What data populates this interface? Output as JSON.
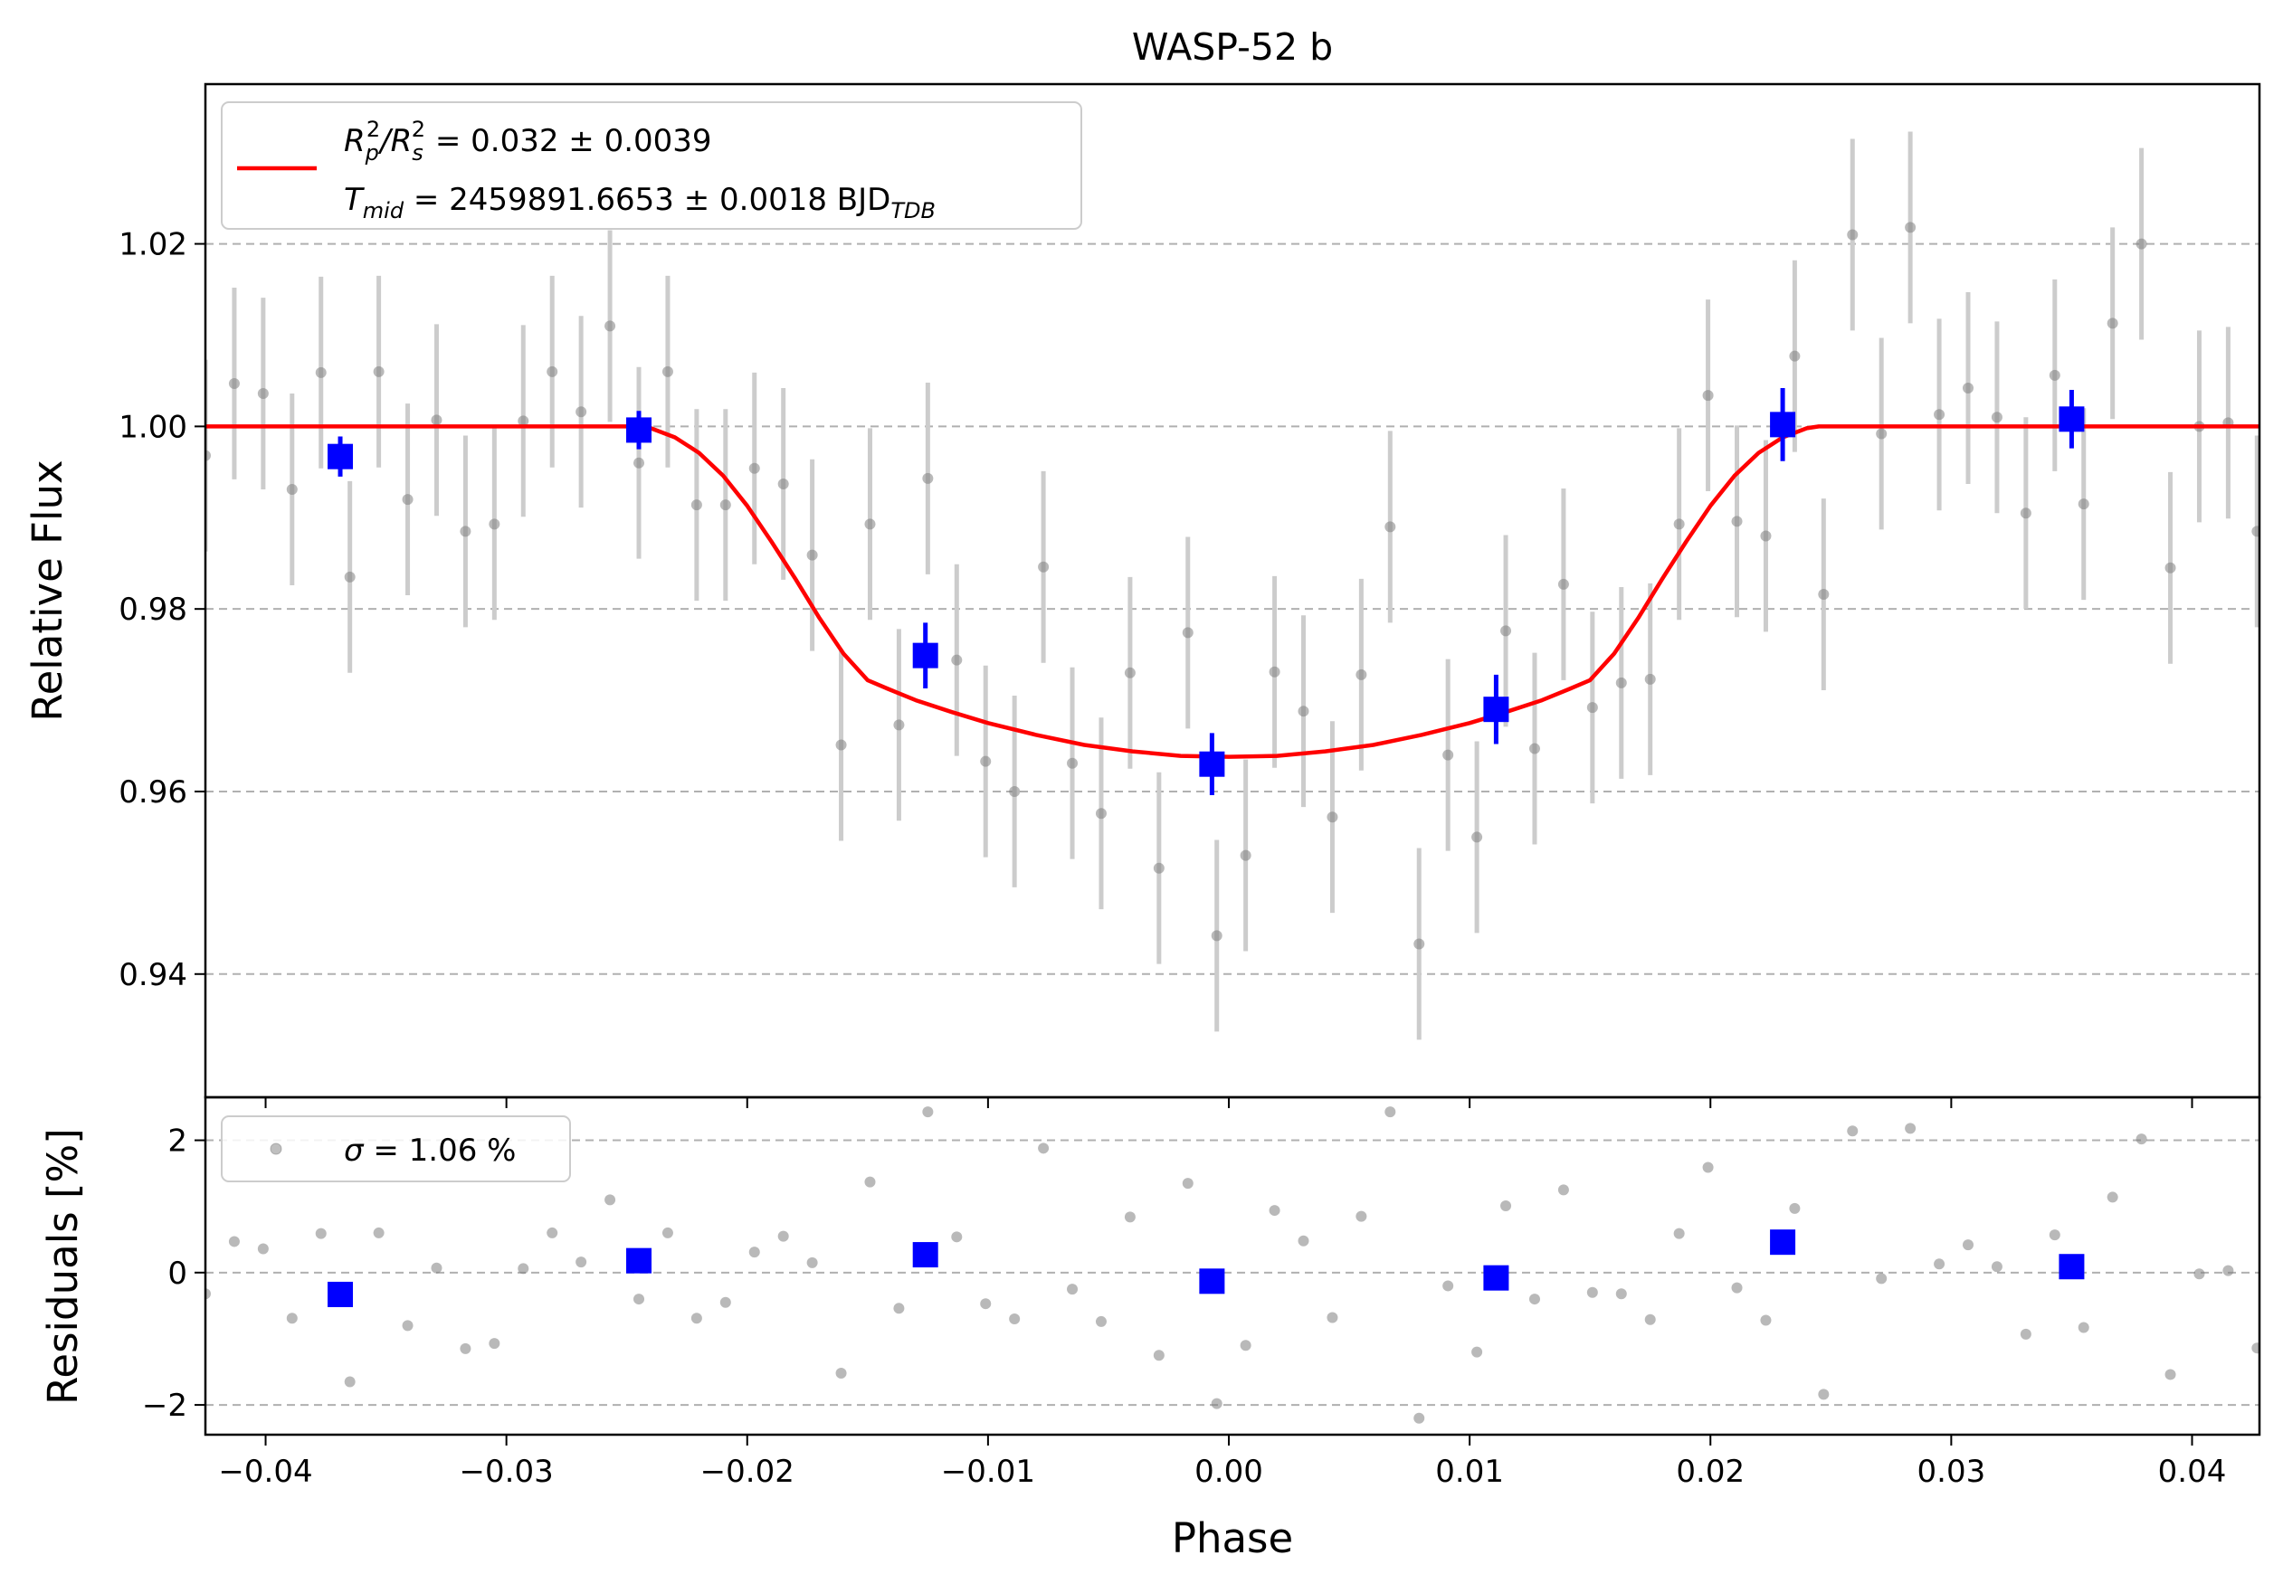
{
  "chart_data": [
    {
      "panel": "flux",
      "type": "scatter",
      "title": "WASP-52 b",
      "xlabel": "",
      "ylabel": "Relative Flux",
      "xlim": [
        -0.0425,
        0.0428
      ],
      "ylim": [
        0.9265,
        1.0375
      ],
      "grid": "horizontal dashed",
      "legend_placement": "top-left",
      "xticks": [
        -0.04,
        -0.03,
        -0.02,
        -0.01,
        0.0,
        0.01,
        0.02,
        0.03,
        0.04
      ],
      "xtick_labels": [
        "−0.04",
        "−0.03",
        "−0.02",
        "−0.01",
        "0.00",
        "0.01",
        "0.02",
        "0.03",
        "0.04"
      ],
      "yticks": [
        0.94,
        0.96,
        0.98,
        1.0,
        1.02
      ],
      "ytick_labels": [
        "0.94",
        "0.96",
        "0.98",
        "1.00",
        "1.02"
      ],
      "legend": {
        "line1": {
          "base": "R",
          "sub1": "p",
          "sup1": "2",
          "sep": "/R",
          "sub2": "s",
          "sup2": "2",
          "rest": " = 0.032 ± 0.0039"
        },
        "line2": {
          "base": "T",
          "sub1": "mid",
          "rest": " = 2459891.6653 ± 0.0018 BJD",
          "sub2": "TDB"
        }
      },
      "colors": {
        "model": "#ff0000",
        "binned": "#0000ff",
        "raw": "#808080",
        "errorbar": "#cccccc",
        "grid": "#b0b0b0"
      },
      "raw_points": {
        "x": [
          -0.0425,
          -0.0413,
          -0.0401,
          -0.0389,
          -0.0377,
          -0.0365,
          -0.0353,
          -0.0341,
          -0.0329,
          -0.0317,
          -0.0305,
          -0.0293,
          -0.0281,
          -0.0269,
          -0.0257,
          -0.0245,
          -0.0233,
          -0.0221,
          -0.0209,
          -0.0197,
          -0.0185,
          -0.0173,
          -0.0161,
          -0.0149,
          -0.0137,
          -0.0125,
          -0.0113,
          -0.0101,
          -0.0089,
          -0.0077,
          -0.0065,
          -0.0053,
          -0.0041,
          -0.0029,
          -0.0017,
          -0.0005,
          0.0007,
          0.0019,
          0.0031,
          0.0043,
          0.0055,
          0.0067,
          0.0079,
          0.0091,
          0.0103,
          0.0115,
          0.0127,
          0.0139,
          0.0151,
          0.0163,
          0.0175,
          0.0187,
          0.0199,
          0.0211,
          0.0223,
          0.0235,
          0.0247,
          0.0259,
          0.0271,
          0.0283,
          0.0295,
          0.0307,
          0.0319,
          0.0331,
          0.0343,
          0.0355,
          0.0367,
          0.0379,
          0.0391,
          0.0403,
          0.0415,
          0.0427
        ],
        "y": [
          0.9968,
          1.0047,
          1.0036,
          0.9931,
          1.0059,
          0.9835,
          1.006,
          0.992,
          1.0007,
          0.9885,
          0.9893,
          1.0006,
          1.006,
          1.0016,
          1.011,
          0.996,
          1.006,
          0.9914,
          0.9914,
          0.9954,
          0.9937,
          0.9859,
          0.9651,
          0.9893,
          0.9673,
          0.9943,
          0.9744,
          0.9633,
          0.96,
          0.9846,
          0.9631,
          0.9576,
          0.973,
          0.9516,
          0.9774,
          0.9442,
          0.953,
          0.9731,
          0.9688,
          0.9572,
          0.9728,
          0.989,
          0.9433,
          0.964,
          0.955,
          0.9776,
          0.9647,
          0.9827,
          0.9692,
          0.9719,
          0.9723,
          0.9893,
          1.0034,
          0.9896,
          0.988,
          1.0077,
          0.9816,
          1.021,
          0.9992,
          1.0218,
          1.0013,
          1.0042,
          1.001,
          0.9905,
          1.0056,
          0.9915,
          1.0113,
          1.02,
          0.9845,
          1.0,
          1.0004,
          0.9885
        ],
        "err": 0.0105
      },
      "binned_points": {
        "x": [
          -0.0369,
          -0.0245,
          -0.0126,
          -0.0007,
          0.0111,
          0.023,
          0.035
        ],
        "y": [
          0.9967,
          0.9996,
          0.9749,
          0.963,
          0.969,
          1.0002,
          1.0008
        ],
        "err": [
          0.0022,
          0.0021,
          0.0036,
          0.0034,
          0.0038,
          0.004,
          0.0032
        ]
      },
      "model_curve": {
        "x": [
          -0.0425,
          -0.0245,
          -0.024,
          -0.023,
          -0.022,
          -0.021,
          -0.02,
          -0.019,
          -0.018,
          -0.017,
          -0.016,
          -0.015,
          -0.0142,
          -0.013,
          -0.0115,
          -0.01,
          -0.008,
          -0.006,
          -0.004,
          -0.002,
          0.0,
          0.002,
          0.004,
          0.006,
          0.008,
          0.01,
          0.0115,
          0.013,
          0.0142,
          0.015,
          0.016,
          0.017,
          0.018,
          0.019,
          0.02,
          0.021,
          0.022,
          0.023,
          0.024,
          0.0245,
          0.0428
        ],
        "y": [
          1.0,
          1.0,
          0.9998,
          0.9988,
          0.9971,
          0.9946,
          0.9913,
          0.9874,
          0.9833,
          0.979,
          0.9751,
          0.9722,
          0.9713,
          0.97,
          0.9687,
          0.9675,
          0.9662,
          0.9651,
          0.9644,
          0.9639,
          0.9638,
          0.9639,
          0.9644,
          0.9651,
          0.9662,
          0.9675,
          0.9687,
          0.97,
          0.9713,
          0.9722,
          0.9751,
          0.979,
          0.9833,
          0.9874,
          0.9913,
          0.9946,
          0.9971,
          0.9988,
          0.9998,
          1.0,
          1.0
        ]
      }
    },
    {
      "panel": "residuals",
      "type": "scatter",
      "title": "",
      "xlabel": "Phase",
      "ylabel": "Residuals [%]",
      "xlim": [
        -0.0425,
        0.0428
      ],
      "ylim": [
        -2.45,
        2.65
      ],
      "grid": "horizontal dashed",
      "legend_placement": "top-left",
      "yticks": [
        -2,
        0,
        2
      ],
      "ytick_labels": [
        "−2",
        "0",
        "2"
      ],
      "legend": {
        "symbol": "σ",
        "rest": " = 1.06 %"
      },
      "raw_points": {
        "x": [
          -0.0425,
          -0.0413,
          -0.0401,
          -0.0389,
          -0.0377,
          -0.0365,
          -0.0353,
          -0.0341,
          -0.0329,
          -0.0317,
          -0.0305,
          -0.0293,
          -0.0281,
          -0.0269,
          -0.0257,
          -0.0245,
          -0.0233,
          -0.0221,
          -0.0209,
          -0.0197,
          -0.0185,
          -0.0173,
          -0.0161,
          -0.0149,
          -0.0137,
          -0.0125,
          -0.0113,
          -0.0101,
          -0.0089,
          -0.0077,
          -0.0065,
          -0.0053,
          -0.0041,
          -0.0029,
          -0.0017,
          -0.0005,
          0.0007,
          0.0019,
          0.0031,
          0.0043,
          0.0055,
          0.0067,
          0.0079,
          0.0091,
          0.0103,
          0.0115,
          0.0127,
          0.0139,
          0.0151,
          0.0163,
          0.0175,
          0.0187,
          0.0199,
          0.0211,
          0.0223,
          0.0235,
          0.0247,
          0.0259,
          0.0271,
          0.0283,
          0.0295,
          0.0307,
          0.0319,
          0.0331,
          0.0343,
          0.0355,
          0.0367,
          0.0379,
          0.0391,
          0.0403,
          0.0415,
          0.0427
        ],
        "y": [
          -0.32,
          0.47,
          0.36,
          -0.69,
          0.59,
          -1.65,
          0.6,
          -0.8,
          0.07,
          -1.15,
          -1.07,
          0.06,
          0.6,
          0.16,
          1.1,
          -0.4,
          0.6,
          -0.69,
          -0.45,
          0.31,
          0.55,
          0.15,
          -1.52,
          1.37,
          -0.54,
          2.43,
          0.54,
          -0.47,
          -0.7,
          1.88,
          -0.25,
          -0.74,
          0.84,
          -1.25,
          1.35,
          -1.98,
          -1.1,
          0.94,
          0.48,
          -0.68,
          0.85,
          2.43,
          -2.2,
          -0.2,
          -1.2,
          1.01,
          -0.4,
          1.25,
          -0.3,
          -0.32,
          -0.71,
          0.59,
          1.59,
          -0.23,
          -0.72,
          0.97,
          -1.84,
          2.14,
          -0.09,
          2.18,
          0.13,
          0.42,
          0.09,
          -0.93,
          0.57,
          -0.83,
          1.14,
          2.02,
          -1.54,
          -0.02,
          0.03,
          -1.14
        ]
      },
      "binned_points": {
        "x": [
          -0.0369,
          -0.0245,
          -0.0126,
          -0.0007,
          0.0111,
          0.023,
          0.035
        ],
        "y": [
          -0.33,
          0.18,
          0.27,
          -0.13,
          -0.08,
          0.46,
          0.09
        ]
      }
    }
  ]
}
